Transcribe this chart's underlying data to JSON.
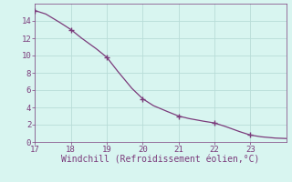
{
  "x": [
    17,
    17.3,
    17.7,
    18,
    18.3,
    18.7,
    19,
    19.3,
    19.7,
    20,
    20.3,
    20.7,
    21,
    21.3,
    21.7,
    22,
    22.3,
    22.7,
    23,
    23.3,
    23.7,
    24
  ],
  "y": [
    15.2,
    14.8,
    13.8,
    13.0,
    12.0,
    10.8,
    9.8,
    8.2,
    6.2,
    5.0,
    4.2,
    3.5,
    3.0,
    2.7,
    2.4,
    2.2,
    1.8,
    1.2,
    0.8,
    0.6,
    0.45,
    0.4
  ],
  "markers_x": [
    17,
    18,
    19,
    20,
    21,
    22,
    23
  ],
  "markers_y": [
    15.2,
    13.0,
    9.8,
    5.0,
    3.0,
    2.2,
    0.8
  ],
  "line_color": "#7B3B7B",
  "marker_color": "#7B3B7B",
  "bg_color": "#D8F5F0",
  "grid_color": "#B8DDD8",
  "tick_color": "#7B3B7B",
  "xlabel": "Windchill (Refroidissement éolien,°C)",
  "xlim": [
    17,
    24
  ],
  "ylim": [
    0,
    16
  ],
  "yticks": [
    0,
    2,
    4,
    6,
    8,
    10,
    12,
    14
  ],
  "xticks": [
    17,
    18,
    19,
    20,
    21,
    22,
    23
  ],
  "xlabel_fontsize": 7,
  "tick_fontsize": 6.5,
  "font_family": "monospace"
}
